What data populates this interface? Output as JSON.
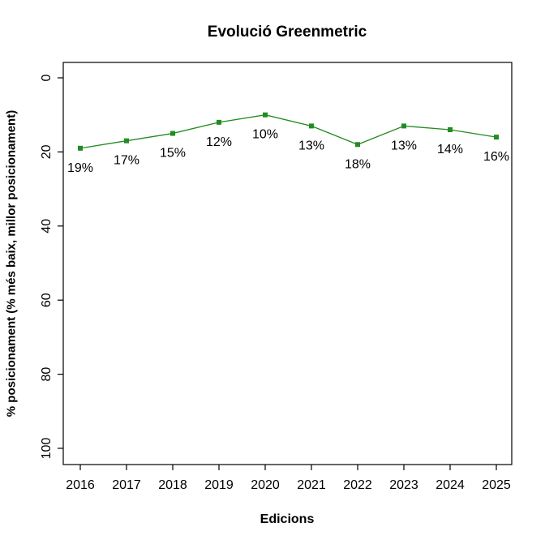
{
  "chart_data": {
    "type": "line",
    "title": "Evolució Greenmetric",
    "xlabel": "Edicions",
    "ylabel": "% posicionament (% més baix, millor posicionament)",
    "categories": [
      2016,
      2017,
      2018,
      2019,
      2020,
      2021,
      2022,
      2023,
      2024,
      2025
    ],
    "values": [
      19,
      17,
      15,
      12,
      10,
      13,
      18,
      13,
      14,
      16
    ],
    "point_labels": [
      "19%",
      "17%",
      "15%",
      "12%",
      "10%",
      "13%",
      "18%",
      "13%",
      "14%",
      "16%"
    ],
    "yticks": [
      0,
      20,
      40,
      60,
      80,
      100
    ],
    "ylim": [
      0,
      100
    ],
    "y_axis_reversed": true,
    "grid": false,
    "legend": "none",
    "marker": "square",
    "line_color": "#228B22",
    "axis_color": "#000000",
    "text_color": "#000000",
    "background_color": "#FFFFFF"
  }
}
